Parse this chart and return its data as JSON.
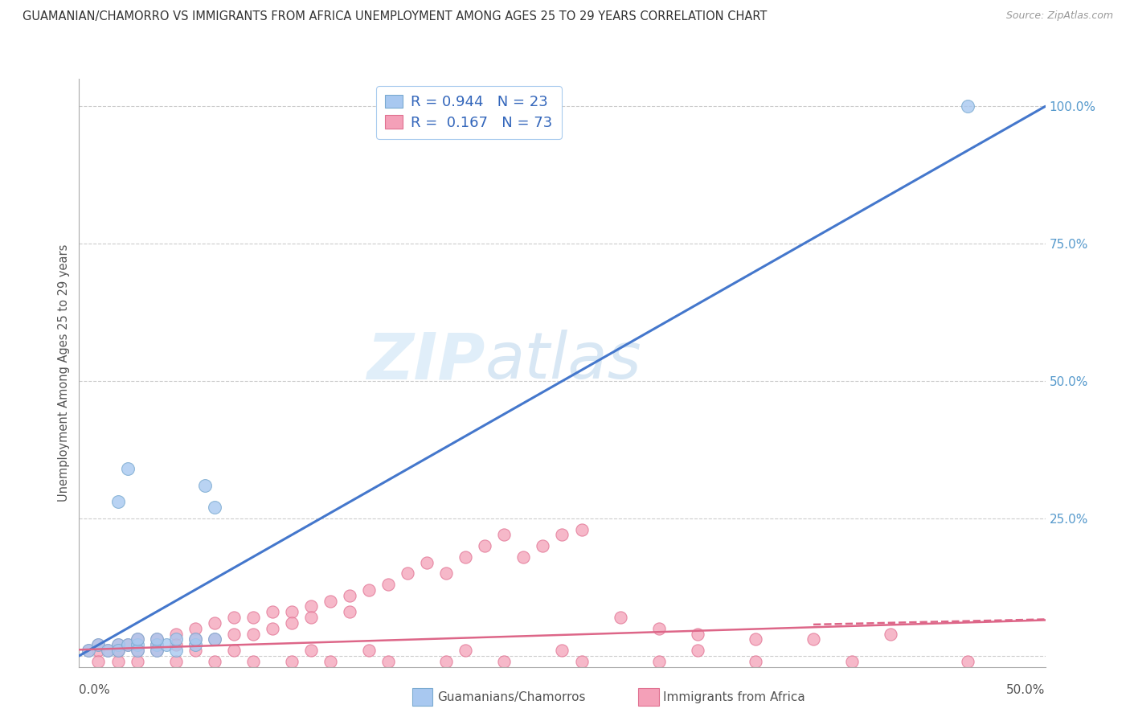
{
  "title": "GUAMANIAN/CHAMORRO VS IMMIGRANTS FROM AFRICA UNEMPLOYMENT AMONG AGES 25 TO 29 YEARS CORRELATION CHART",
  "source": "Source: ZipAtlas.com",
  "ylabel": "Unemployment Among Ages 25 to 29 years",
  "watermark": "ZIPAtlas",
  "series1_label": "Guamanians/Chamorros",
  "series2_label": "Immigrants from Africa",
  "series1_R": 0.944,
  "series1_N": 23,
  "series2_R": 0.167,
  "series2_N": 73,
  "series1_color": "#a8c8f0",
  "series1_edge": "#7aaad0",
  "series2_color": "#f4a0b8",
  "series2_edge": "#e07090",
  "line1_color": "#4477cc",
  "line2_color": "#dd6688",
  "legend_color": "#3366bb",
  "background_color": "#ffffff",
  "grid_color": "#cccccc",
  "ytick_color": "#5599cc",
  "xlim": [
    0.0,
    0.5
  ],
  "ylim": [
    -0.02,
    1.05
  ],
  "s1_x": [
    0.005,
    0.01,
    0.015,
    0.02,
    0.02,
    0.025,
    0.03,
    0.03,
    0.04,
    0.04,
    0.045,
    0.05,
    0.06,
    0.065,
    0.07,
    0.02,
    0.025,
    0.03,
    0.04,
    0.05,
    0.06,
    0.07,
    0.46
  ],
  "s1_y": [
    0.01,
    0.02,
    0.01,
    0.02,
    0.01,
    0.02,
    0.02,
    0.01,
    0.02,
    0.01,
    0.02,
    0.01,
    0.02,
    0.31,
    0.27,
    0.28,
    0.34,
    0.03,
    0.03,
    0.03,
    0.03,
    0.03,
    1.0
  ],
  "s2_x": [
    0.005,
    0.01,
    0.01,
    0.015,
    0.02,
    0.02,
    0.025,
    0.03,
    0.03,
    0.04,
    0.04,
    0.05,
    0.05,
    0.06,
    0.06,
    0.07,
    0.07,
    0.08,
    0.08,
    0.09,
    0.09,
    0.1,
    0.1,
    0.11,
    0.11,
    0.12,
    0.12,
    0.13,
    0.14,
    0.14,
    0.15,
    0.16,
    0.17,
    0.18,
    0.19,
    0.2,
    0.21,
    0.22,
    0.23,
    0.24,
    0.25,
    0.26,
    0.28,
    0.3,
    0.32,
    0.35,
    0.38,
    0.42,
    0.01,
    0.02,
    0.03,
    0.05,
    0.07,
    0.09,
    0.11,
    0.13,
    0.16,
    0.19,
    0.22,
    0.26,
    0.3,
    0.35,
    0.4,
    0.46,
    0.02,
    0.04,
    0.06,
    0.08,
    0.12,
    0.15,
    0.2,
    0.25,
    0.32
  ],
  "s2_y": [
    0.01,
    0.01,
    0.02,
    0.01,
    0.02,
    0.01,
    0.02,
    0.03,
    0.01,
    0.03,
    0.02,
    0.04,
    0.02,
    0.05,
    0.03,
    0.06,
    0.03,
    0.07,
    0.04,
    0.07,
    0.04,
    0.08,
    0.05,
    0.08,
    0.06,
    0.09,
    0.07,
    0.1,
    0.11,
    0.08,
    0.12,
    0.13,
    0.15,
    0.17,
    0.15,
    0.18,
    0.2,
    0.22,
    0.18,
    0.2,
    0.22,
    0.23,
    0.07,
    0.05,
    0.04,
    0.03,
    0.03,
    0.04,
    -0.01,
    -0.01,
    -0.01,
    -0.01,
    -0.01,
    -0.01,
    -0.01,
    -0.01,
    -0.01,
    -0.01,
    -0.01,
    -0.01,
    -0.01,
    -0.01,
    -0.01,
    -0.01,
    0.01,
    0.01,
    0.01,
    0.01,
    0.01,
    0.01,
    0.01,
    0.01,
    0.01
  ],
  "line1_x": [
    -0.01,
    0.5
  ],
  "line1_y": [
    -0.02,
    1.0
  ],
  "line2_x": [
    -0.01,
    0.5
  ],
  "line2_y": [
    0.01,
    0.065
  ]
}
